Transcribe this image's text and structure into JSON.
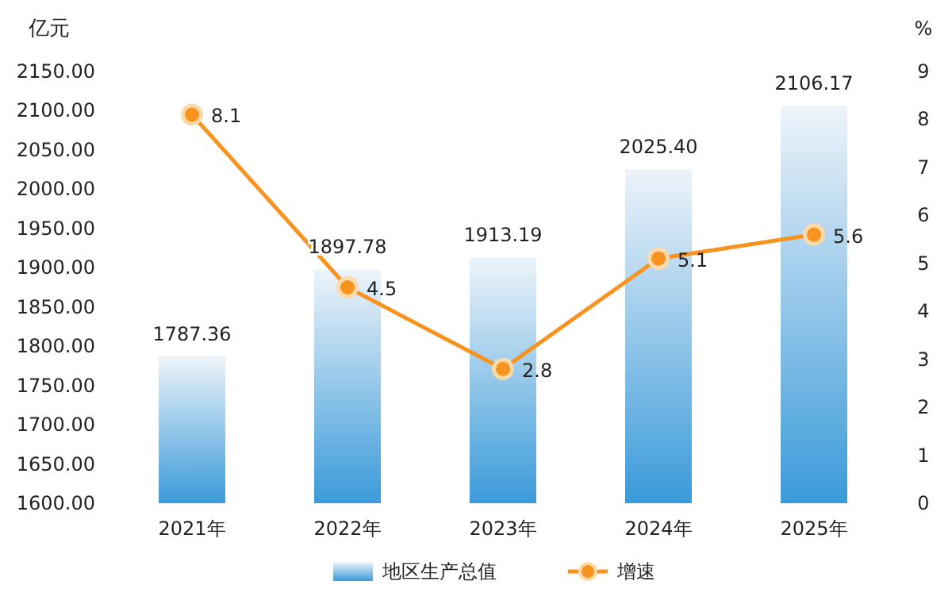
{
  "chart_data": {
    "type": "bar",
    "categories": [
      "2021年",
      "2022年",
      "2023年",
      "2024年",
      "2025年"
    ],
    "ylabel": "亿元",
    "y2label": "%",
    "ylim": [
      1600,
      2150
    ],
    "yticks": [
      {
        "value": 1600,
        "label": "1600.00"
      },
      {
        "value": 1650,
        "label": "1650.00"
      },
      {
        "value": 1700,
        "label": "1700.00"
      },
      {
        "value": 1750,
        "label": "1750.00"
      },
      {
        "value": 1800,
        "label": "1800.00"
      },
      {
        "value": 1850,
        "label": "1850.00"
      },
      {
        "value": 1900,
        "label": "1900.00"
      },
      {
        "value": 1950,
        "label": "1950.00"
      },
      {
        "value": 2000,
        "label": "2000.00"
      },
      {
        "value": 2050,
        "label": "2050.00"
      },
      {
        "value": 2100,
        "label": "2100.00"
      },
      {
        "value": 2150,
        "label": "2150.00"
      }
    ],
    "y2lim": [
      0,
      9
    ],
    "y2ticks": [
      0,
      1,
      2,
      3,
      4,
      5,
      6,
      7,
      8,
      9
    ],
    "series": [
      {
        "name": "地区生产总值",
        "color": "#3a9ad9",
        "values": [
          1787.36,
          1897.78,
          1913.19,
          2025.4,
          2106.17
        ],
        "value_labels": [
          "1787.36",
          "1897.78",
          "1913.19",
          "2025.40",
          "2106.17"
        ]
      },
      {
        "name": "增速",
        "type": "line",
        "axis": "y2",
        "color": "#f7931e",
        "marker": "circle",
        "values": [
          8.1,
          4.5,
          2.8,
          5.1,
          5.6
        ],
        "value_labels": [
          "8.1",
          "4.5",
          "2.8",
          "5.1",
          "5.6"
        ]
      }
    ],
    "legend": "bottom",
    "grid": false
  }
}
